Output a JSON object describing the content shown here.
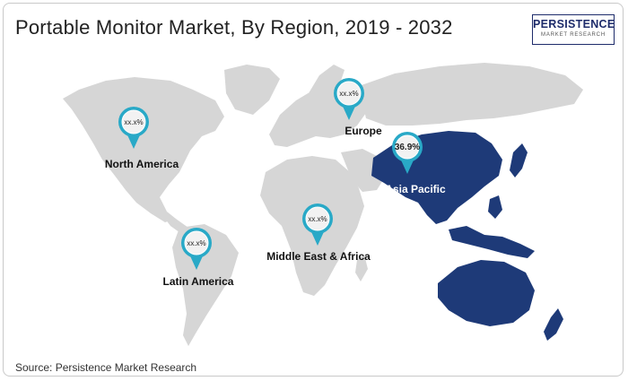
{
  "title": "Portable Monitor Market, By Region, 2019 - 2032",
  "logo": {
    "name": "PERSISTENCE",
    "sub": "MARKET RESEARCH"
  },
  "source": "Source: Persistence Market Research",
  "colors": {
    "land": "#d6d6d6",
    "highlight": "#1e3a78",
    "pin": "#29a9c7",
    "pin_inner": "#f2f2f2"
  },
  "regions": [
    {
      "id": "north-america",
      "name": "North America",
      "value": "xx.x%",
      "highlighted": false
    },
    {
      "id": "europe",
      "name": "Europe",
      "value": "xx.x%",
      "highlighted": false
    },
    {
      "id": "asia-pacific",
      "name": "Asia Pacific",
      "value": "36.9%",
      "highlighted": true
    },
    {
      "id": "middle-east-africa",
      "name": "Middle East & Africa",
      "value": "xx.x%",
      "highlighted": false
    },
    {
      "id": "latin-america",
      "name": "Latin America",
      "value": "xx.x%",
      "highlighted": false
    }
  ]
}
